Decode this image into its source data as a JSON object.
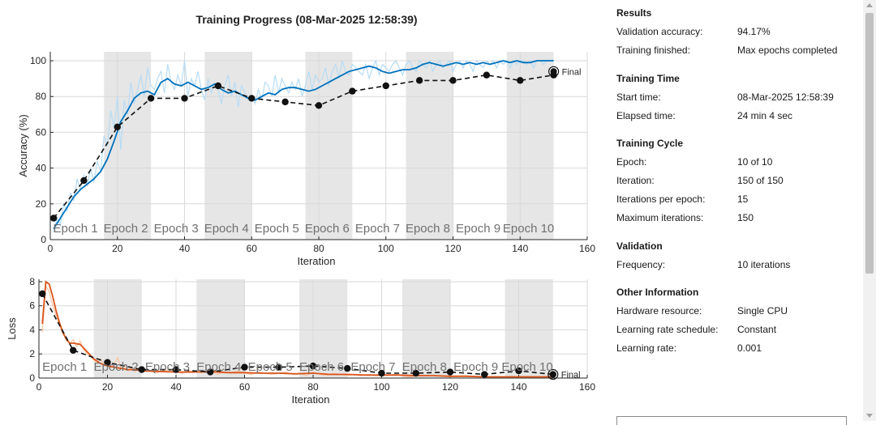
{
  "title": "Training Progress (08-Mar-2025 12:58:39)",
  "colors": {
    "accuracy_smoothed": "#0072bd",
    "accuracy_raw": "#b7dcf5",
    "loss_smoothed": "#d95319",
    "loss_raw": "#f7c6a5",
    "validation": "#111111",
    "epoch_shade": "#e6e6e6"
  },
  "chart_data": [
    {
      "type": "line",
      "name": "accuracy",
      "xlabel": "Iteration",
      "ylabel": "Accuracy (%)",
      "xlim": [
        0,
        160
      ],
      "ylim": [
        0,
        105
      ],
      "xticks": [
        0,
        20,
        40,
        60,
        80,
        100,
        120,
        140,
        160
      ],
      "yticks": [
        0,
        20,
        40,
        60,
        80,
        100
      ],
      "grid": true,
      "epoch_labels": [
        "Epoch 1",
        "Epoch 2",
        "Epoch 3",
        "Epoch 4",
        "Epoch 5",
        "Epoch 6",
        "Epoch 7",
        "Epoch 8",
        "Epoch 9",
        "Epoch 10"
      ],
      "final_label": "Final",
      "smoothed": {
        "x": [
          1,
          3,
          5,
          7,
          9,
          11,
          13,
          15,
          17,
          19,
          21,
          23,
          25,
          27,
          29,
          31,
          33,
          35,
          37,
          39,
          41,
          43,
          45,
          47,
          49,
          51,
          53,
          55,
          57,
          59,
          61,
          63,
          65,
          67,
          69,
          71,
          73,
          75,
          77,
          79,
          81,
          83,
          85,
          87,
          89,
          91,
          93,
          95,
          97,
          99,
          101,
          103,
          105,
          107,
          109,
          111,
          113,
          115,
          117,
          119,
          121,
          123,
          125,
          127,
          129,
          131,
          133,
          135,
          137,
          139,
          141,
          143,
          145,
          147,
          149,
          150
        ],
        "y": [
          6,
          12,
          18,
          24,
          28,
          31,
          34,
          38,
          45,
          55,
          66,
          72,
          79,
          82,
          83,
          81,
          88,
          90,
          87,
          86,
          88,
          86,
          84,
          85,
          87,
          84,
          82,
          83,
          81,
          79,
          78,
          80,
          82,
          81,
          84,
          85,
          85,
          84,
          83,
          84,
          86,
          88,
          90,
          92,
          94,
          95,
          96,
          97,
          96,
          94,
          93,
          94,
          95,
          95,
          96,
          98,
          99,
          98,
          97,
          98,
          99,
          98,
          99,
          98,
          99,
          98,
          99,
          100,
          99,
          100,
          99,
          99,
          100,
          100,
          100,
          100
        ]
      },
      "raw": {
        "x": [
          1,
          2,
          3,
          4,
          5,
          6,
          7,
          8,
          9,
          10,
          11,
          12,
          13,
          14,
          15,
          16,
          17,
          18,
          19,
          20,
          21,
          22,
          23,
          24,
          25,
          26,
          27,
          28,
          29,
          30,
          31,
          32,
          33,
          34,
          35,
          36,
          37,
          38,
          39,
          40,
          41,
          42,
          43,
          44,
          45,
          46,
          47,
          48,
          49,
          50,
          51,
          52,
          53,
          54,
          55,
          56,
          57,
          58,
          59,
          60,
          61,
          62,
          63,
          64,
          65,
          66,
          67,
          68,
          69,
          70,
          71,
          72,
          73,
          74,
          75,
          76,
          77,
          78,
          79,
          80,
          81,
          82,
          83,
          84,
          85,
          86,
          87,
          88,
          89,
          90,
          91,
          92,
          93,
          94,
          95,
          96,
          97,
          98,
          99,
          100,
          101,
          102,
          103,
          104,
          105,
          106,
          107,
          108,
          109,
          110,
          111,
          112,
          113,
          114,
          115,
          116,
          117,
          118,
          119,
          120,
          121,
          122,
          123,
          124,
          125,
          126,
          127,
          128,
          129,
          130,
          131,
          132,
          133,
          134,
          135,
          136,
          137,
          138,
          139,
          140,
          141,
          142,
          143,
          144,
          145,
          146,
          147,
          148,
          149,
          150
        ],
        "y": [
          4,
          12,
          8,
          20,
          16,
          26,
          22,
          34,
          28,
          36,
          30,
          40,
          32,
          44,
          38,
          58,
          52,
          72,
          62,
          80,
          50,
          78,
          70,
          88,
          76,
          84,
          92,
          80,
          96,
          86,
          84,
          90,
          94,
          82,
          98,
          88,
          84,
          92,
          86,
          100,
          80,
          90,
          86,
          94,
          84,
          78,
          90,
          82,
          88,
          84,
          76,
          86,
          92,
          80,
          88,
          74,
          86,
          82,
          78,
          80,
          76,
          84,
          78,
          88,
          86,
          80,
          92,
          82,
          90,
          86,
          82,
          88,
          84,
          90,
          80,
          86,
          94,
          84,
          92,
          88,
          90,
          96,
          86,
          94,
          98,
          90,
          100,
          94,
          92,
          98,
          96,
          94,
          92,
          98,
          90,
          96,
          100,
          92,
          98,
          96,
          94,
          98,
          100,
          96,
          92,
          98,
          100,
          96,
          94,
          100,
          98,
          96,
          100,
          94,
          98,
          100,
          96,
          98,
          100,
          94,
          98,
          100,
          96,
          100,
          98,
          94,
          100,
          98,
          96,
          100,
          98,
          100,
          96,
          100,
          98,
          100,
          96,
          100,
          98,
          100,
          100,
          98,
          100,
          96,
          100,
          100,
          98,
          100,
          100,
          100
        ]
      },
      "validation": {
        "x": [
          1,
          10,
          20,
          30,
          40,
          50,
          60,
          70,
          80,
          90,
          100,
          110,
          120,
          130,
          140,
          150
        ],
        "y": [
          12,
          33,
          63,
          79,
          79,
          86,
          79,
          77,
          75,
          83,
          86,
          89,
          89,
          92,
          89,
          92
        ]
      }
    },
    {
      "type": "line",
      "name": "loss",
      "xlabel": "Iteration",
      "ylabel": "Loss",
      "xlim": [
        0,
        160
      ],
      "ylim": [
        0,
        8.2
      ],
      "xticks": [
        0,
        20,
        40,
        60,
        80,
        100,
        120,
        140,
        160
      ],
      "yticks": [
        0,
        2,
        4,
        6,
        8
      ],
      "grid": true,
      "epoch_labels": [
        "Epoch 1",
        "Epoch 2",
        "Epoch 3",
        "Epoch 4",
        "Epoch 5",
        "Epoch 6",
        "Epoch 7",
        "Epoch 8",
        "Epoch 9",
        "Epoch 10"
      ],
      "final_label": "Final",
      "smoothed": {
        "x": [
          1,
          2,
          3,
          4,
          5,
          6,
          7,
          8,
          9,
          10,
          12,
          14,
          16,
          18,
          20,
          22,
          24,
          26,
          28,
          30,
          35,
          40,
          45,
          50,
          55,
          60,
          65,
          70,
          75,
          80,
          85,
          90,
          95,
          100,
          105,
          110,
          115,
          120,
          125,
          130,
          135,
          140,
          145,
          150
        ],
        "y": [
          4.5,
          8.0,
          7.8,
          6.8,
          5.6,
          4.6,
          3.8,
          3.2,
          2.9,
          2.9,
          2.8,
          2.2,
          1.6,
          1.2,
          1.0,
          0.9,
          0.8,
          0.7,
          0.7,
          0.6,
          0.55,
          0.5,
          0.5,
          0.55,
          0.45,
          0.45,
          0.4,
          0.4,
          0.35,
          0.4,
          0.3,
          0.3,
          0.25,
          0.25,
          0.25,
          0.2,
          0.2,
          0.15,
          0.15,
          0.1,
          0.1,
          0.1,
          0.1,
          0.1
        ]
      },
      "raw": {
        "x": [
          1,
          2,
          3,
          4,
          5,
          6,
          7,
          8,
          9,
          10,
          11,
          12,
          13,
          14,
          15,
          16,
          17,
          18,
          19,
          20,
          21,
          22,
          23,
          24,
          25,
          26,
          27,
          28,
          29,
          30,
          32,
          34,
          36,
          38,
          40,
          42,
          44,
          46,
          48,
          50,
          52,
          54,
          56,
          58,
          60,
          62,
          64,
          66,
          68,
          70,
          72,
          74,
          76,
          78,
          80,
          82,
          84,
          86,
          88,
          90,
          92,
          94,
          96,
          98,
          100,
          104,
          108,
          112,
          116,
          120,
          124,
          128,
          132,
          136,
          140,
          144,
          148,
          150
        ],
        "y": [
          3.8,
          7.6,
          7.2,
          6.0,
          5.2,
          4.4,
          3.6,
          3.4,
          2.8,
          3.2,
          2.6,
          3.1,
          2.4,
          2.0,
          1.8,
          1.5,
          1.2,
          1.6,
          1.0,
          1.4,
          0.9,
          1.2,
          1.7,
          0.8,
          1.0,
          0.6,
          0.9,
          0.5,
          0.8,
          0.6,
          0.7,
          0.4,
          0.6,
          0.7,
          0.5,
          0.4,
          0.6,
          0.5,
          0.4,
          0.6,
          0.3,
          0.5,
          0.4,
          0.6,
          0.4,
          0.3,
          0.5,
          0.4,
          0.3,
          0.4,
          0.5,
          0.3,
          0.4,
          0.2,
          0.5,
          0.3,
          0.2,
          0.4,
          0.3,
          0.2,
          0.3,
          0.2,
          0.3,
          0.2,
          0.2,
          0.3,
          0.1,
          0.2,
          0.2,
          0.1,
          0.2,
          0.1,
          0.1,
          0.1,
          0.1,
          0.1,
          0.1,
          0.1
        ]
      },
      "validation": {
        "x": [
          1,
          10,
          20,
          30,
          40,
          50,
          60,
          70,
          80,
          90,
          100,
          110,
          120,
          130,
          140,
          150
        ],
        "y": [
          7.0,
          2.3,
          1.3,
          0.7,
          0.7,
          0.5,
          0.9,
          0.9,
          1.0,
          0.8,
          0.4,
          0.4,
          0.5,
          0.3,
          0.6,
          0.3
        ]
      }
    }
  ],
  "panel": {
    "results": {
      "heading": "Results",
      "rows": [
        {
          "key": "Validation accuracy:",
          "value": "94.17%"
        },
        {
          "key": "Training finished:",
          "value": "Max epochs completed"
        }
      ]
    },
    "time": {
      "heading": "Training Time",
      "rows": [
        {
          "key": "Start time:",
          "value": "08-Mar-2025 12:58:39"
        },
        {
          "key": "Elapsed time:",
          "value": "24 min 4 sec"
        }
      ]
    },
    "cycle": {
      "heading": "Training Cycle",
      "rows": [
        {
          "key": "Epoch:",
          "value": "10 of 10"
        },
        {
          "key": "Iteration:",
          "value": "150 of 150"
        },
        {
          "key": "Iterations per epoch:",
          "value": "15"
        },
        {
          "key": "Maximum iterations:",
          "value": "150"
        }
      ]
    },
    "validation": {
      "heading": "Validation",
      "rows": [
        {
          "key": "Frequency:",
          "value": "10 iterations"
        }
      ]
    },
    "other": {
      "heading": "Other Information",
      "rows": [
        {
          "key": "Hardware resource:",
          "value": "Single CPU"
        },
        {
          "key": "Learning rate schedule:",
          "value": "Constant"
        },
        {
          "key": "Learning rate:",
          "value": "0.001"
        }
      ]
    }
  }
}
